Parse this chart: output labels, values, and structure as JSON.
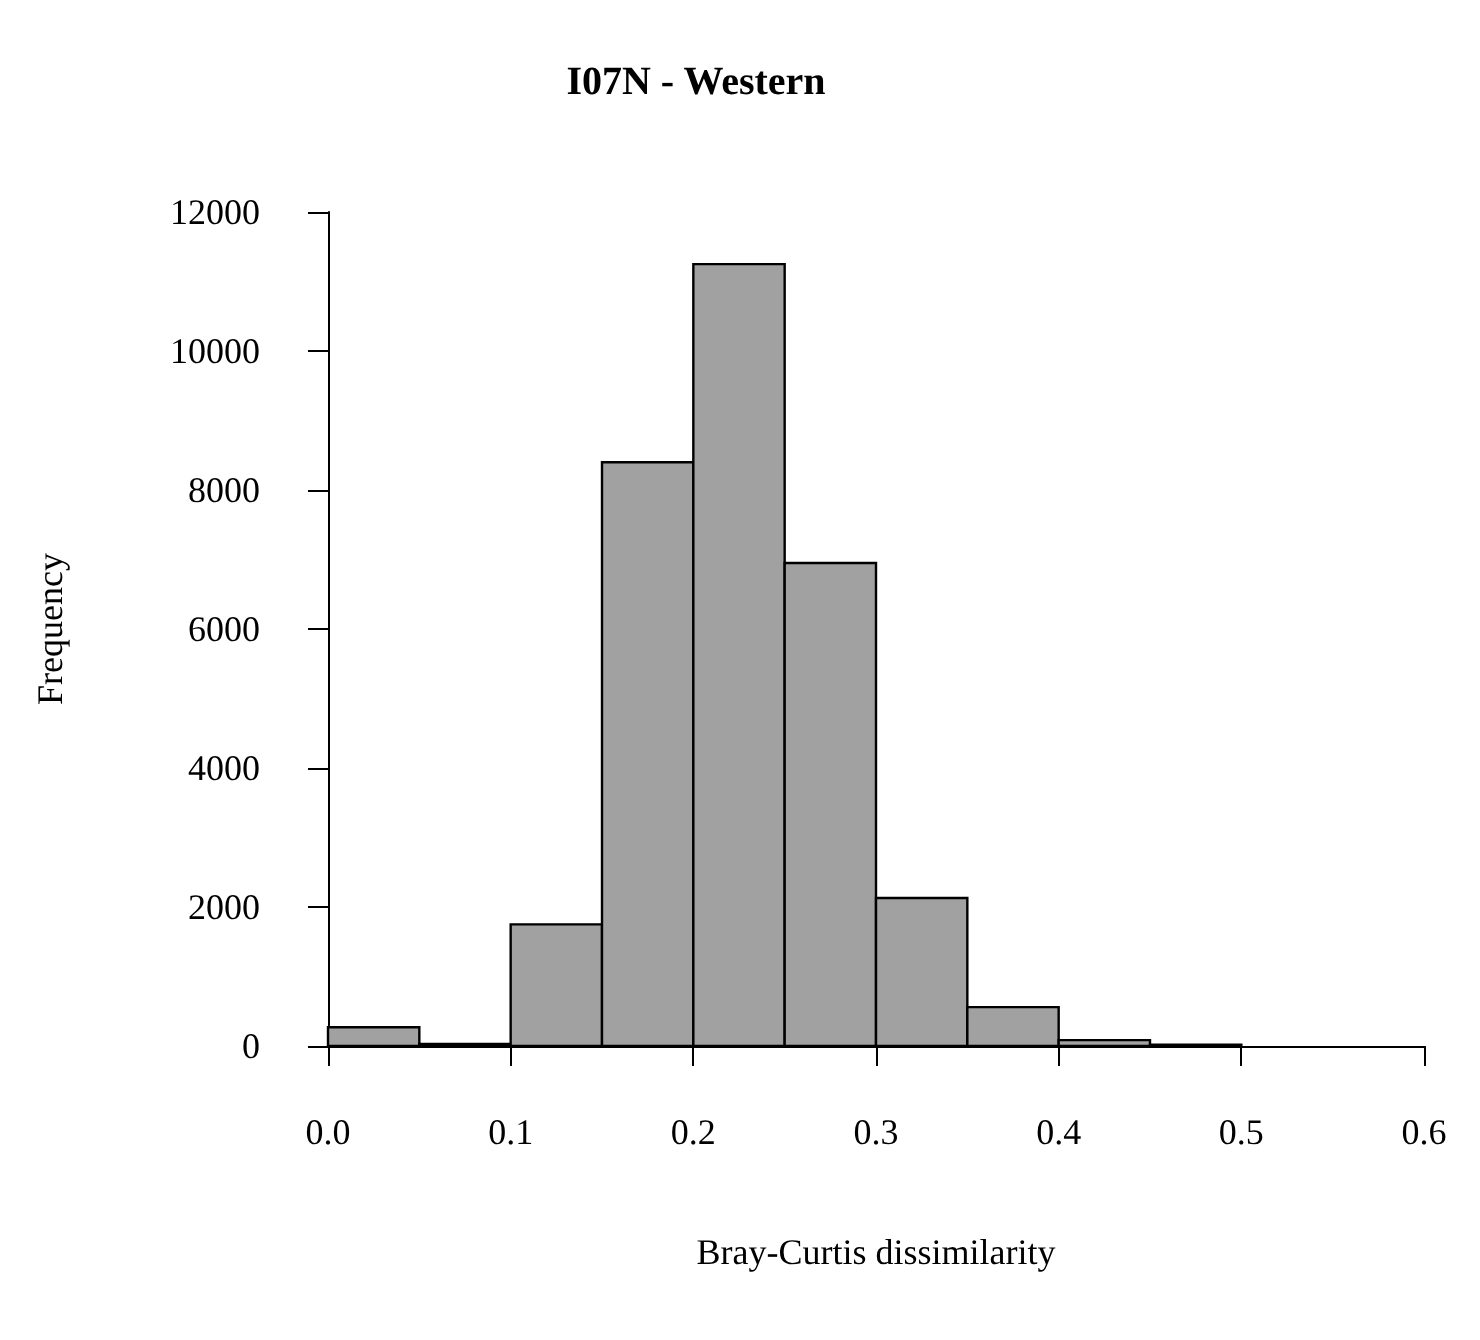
{
  "chart_data": {
    "type": "histogram",
    "title": "I07N - Western",
    "xlabel": "Bray-Curtis dissimilarity",
    "ylabel": "Frequency",
    "bins": [
      0,
      0.05,
      0.1,
      0.15,
      0.2,
      0.25,
      0.3,
      0.35,
      0.4,
      0.45,
      0.5
    ],
    "values": [
      270,
      30,
      1750,
      8400,
      11250,
      6950,
      2130,
      560,
      85,
      20
    ],
    "color": "#a1a1a1",
    "xlim": [
      0,
      0.6
    ],
    "xticks": [
      {
        "value": 0,
        "label": "0.0"
      },
      0.1,
      0.2,
      0.3,
      0.4,
      0.5,
      0.6
    ],
    "ylim": [
      0,
      12000
    ],
    "yticks": [
      0,
      2000,
      4000,
      6000,
      8000,
      10000,
      12000
    ]
  }
}
